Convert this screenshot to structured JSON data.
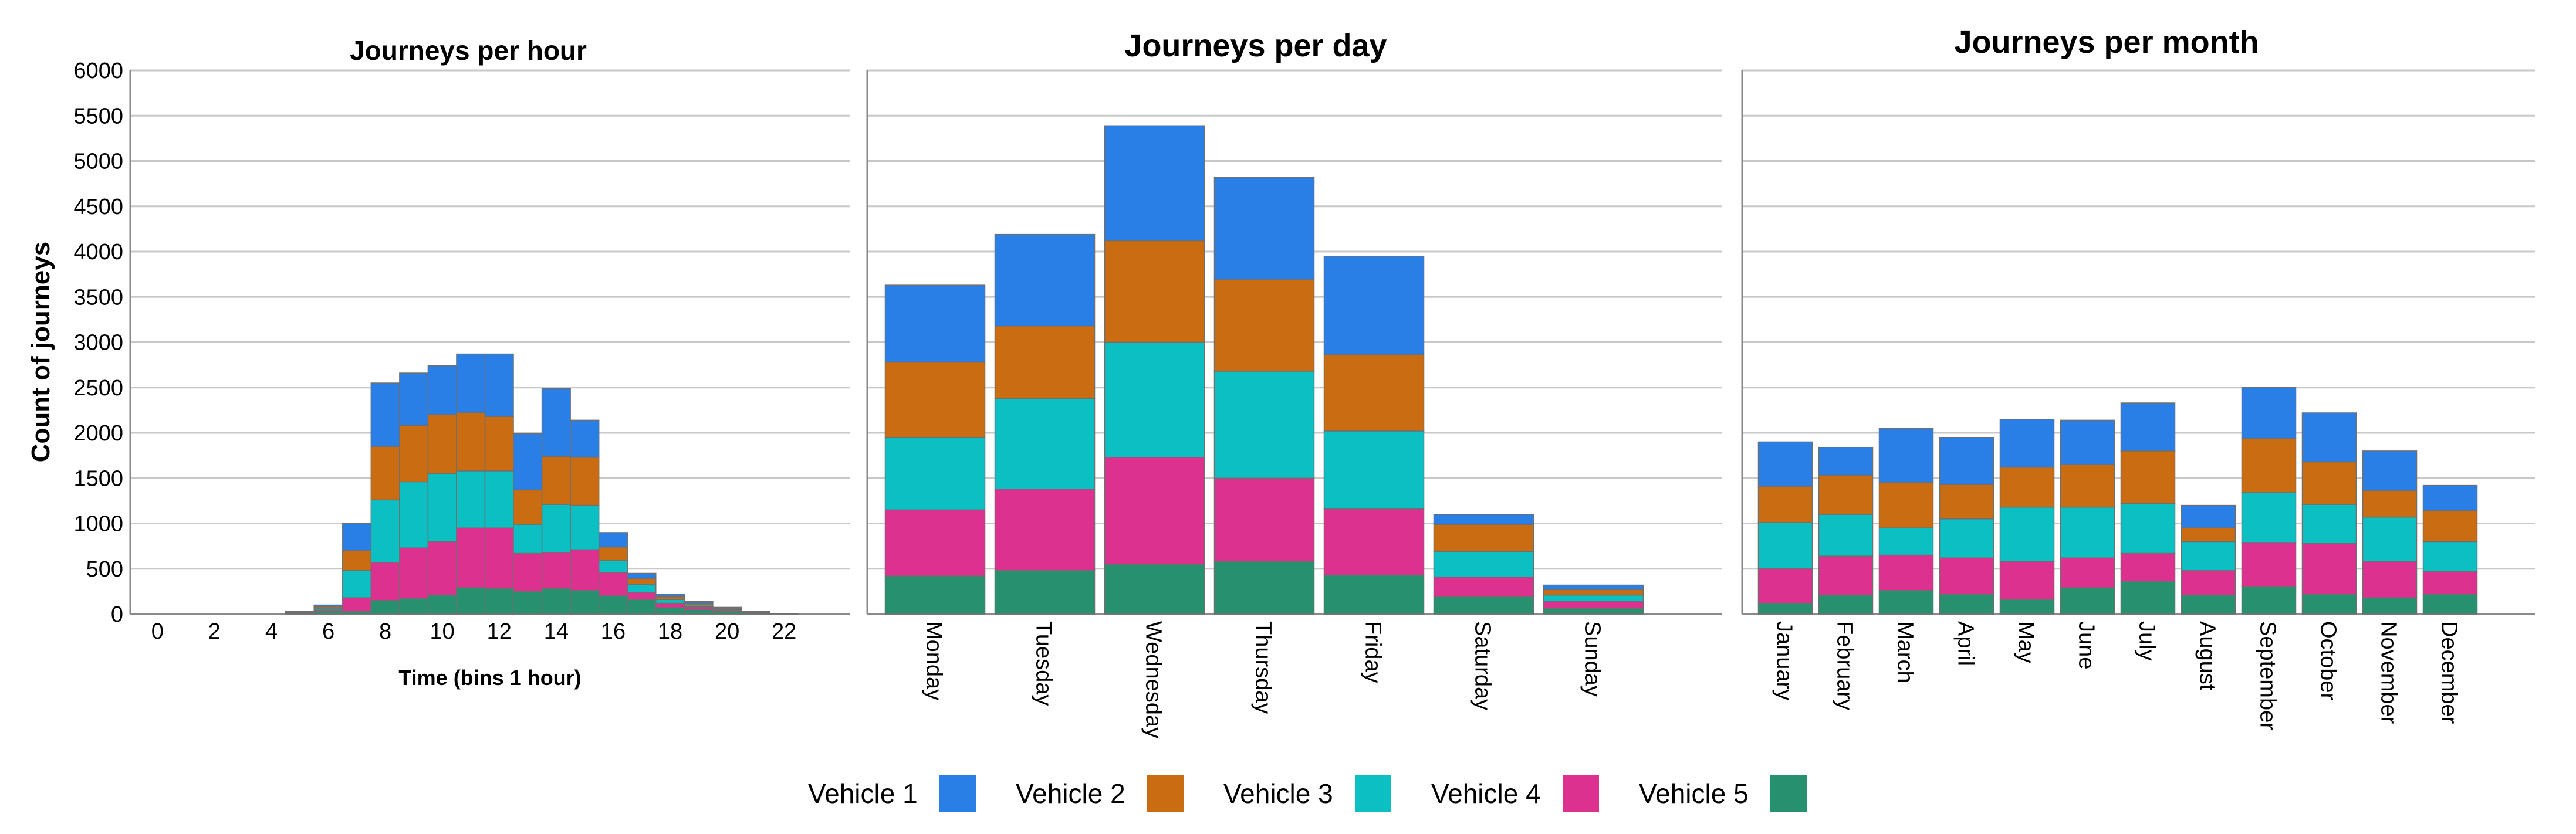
{
  "colors": {
    "Vehicle 1": "#2a7fe6",
    "Vehicle 2": "#c96c12",
    "Vehicle 3": "#0cbfc3",
    "Vehicle 4": "#dc318f",
    "Vehicle 5": "#27916f",
    "grid": "#c8c8c8",
    "axis": "#8a8a8a"
  },
  "legend": [
    "Vehicle 1",
    "Vehicle 2",
    "Vehicle 3",
    "Vehicle 4",
    "Vehicle 5"
  ],
  "chart_data": [
    {
      "type": "bar",
      "stacked": true,
      "title": "Journeys per hour",
      "xlabel": "Time (bins 1 hour)",
      "ylabel": "Count of journeys",
      "ylim": [
        0,
        6000
      ],
      "yticks": [
        0,
        500,
        1000,
        1500,
        2000,
        2500,
        3000,
        3500,
        4000,
        4500,
        5000,
        5500,
        6000
      ],
      "xticks": [
        0,
        2,
        4,
        6,
        8,
        10,
        12,
        14,
        16,
        18,
        20,
        22
      ],
      "xlim": [
        -0.5,
        23.5
      ],
      "grid": true,
      "categories": [
        0,
        1,
        2,
        3,
        4,
        5,
        6,
        7,
        8,
        9,
        10,
        11,
        12,
        13,
        14,
        15,
        16,
        17,
        18,
        19,
        20,
        21,
        22,
        23
      ],
      "series": [
        {
          "name": "Vehicle 5",
          "values": [
            0,
            0,
            0,
            0,
            0,
            10,
            30,
            30,
            150,
            170,
            210,
            290,
            280,
            250,
            280,
            260,
            200,
            160,
            70,
            50,
            30,
            10,
            5,
            0
          ]
        },
        {
          "name": "Vehicle 4",
          "values": [
            0,
            0,
            0,
            0,
            0,
            5,
            15,
            150,
            420,
            560,
            590,
            660,
            670,
            420,
            400,
            450,
            260,
            80,
            50,
            30,
            15,
            5,
            0,
            0
          ]
        },
        {
          "name": "Vehicle 3",
          "values": [
            0,
            0,
            0,
            0,
            0,
            5,
            20,
            300,
            690,
            730,
            750,
            630,
            630,
            320,
            530,
            490,
            130,
            90,
            40,
            20,
            10,
            5,
            0,
            0
          ]
        },
        {
          "name": "Vehicle 2",
          "values": [
            0,
            0,
            0,
            0,
            0,
            5,
            15,
            220,
            590,
            620,
            650,
            640,
            600,
            380,
            530,
            530,
            150,
            60,
            30,
            20,
            10,
            5,
            0,
            0
          ]
        },
        {
          "name": "Vehicle 1",
          "values": [
            0,
            0,
            0,
            0,
            0,
            5,
            20,
            300,
            700,
            580,
            540,
            650,
            690,
            620,
            750,
            410,
            160,
            60,
            30,
            20,
            10,
            5,
            0,
            0
          ]
        }
      ]
    },
    {
      "type": "bar",
      "stacked": true,
      "title": "Journeys per day",
      "ylim": [
        0,
        6000
      ],
      "grid": true,
      "categories": [
        "Monday",
        "Tuesday",
        "Wednesday",
        "Thursday",
        "Friday",
        "Saturday",
        "Sunday"
      ],
      "series": [
        {
          "name": "Vehicle 5",
          "values": [
            420,
            480,
            550,
            580,
            430,
            190,
            60
          ]
        },
        {
          "name": "Vehicle 4",
          "values": [
            730,
            900,
            1180,
            920,
            730,
            220,
            80
          ]
        },
        {
          "name": "Vehicle 3",
          "values": [
            800,
            1000,
            1270,
            1180,
            860,
            280,
            70
          ]
        },
        {
          "name": "Vehicle 2",
          "values": [
            830,
            800,
            1120,
            1010,
            840,
            300,
            60
          ]
        },
        {
          "name": "Vehicle 1",
          "values": [
            850,
            1010,
            1270,
            1130,
            1090,
            110,
            50
          ]
        }
      ]
    },
    {
      "type": "bar",
      "stacked": true,
      "title": "Journeys per month",
      "ylim": [
        0,
        6000
      ],
      "grid": true,
      "categories": [
        "January",
        "February",
        "March",
        "April",
        "May",
        "June",
        "July",
        "August",
        "September",
        "October",
        "November",
        "December"
      ],
      "series": [
        {
          "name": "Vehicle 5",
          "values": [
            120,
            210,
            260,
            220,
            160,
            290,
            360,
            210,
            300,
            220,
            180,
            220
          ]
        },
        {
          "name": "Vehicle 4",
          "values": [
            380,
            430,
            390,
            400,
            420,
            330,
            310,
            270,
            490,
            560,
            400,
            250
          ]
        },
        {
          "name": "Vehicle 3",
          "values": [
            510,
            460,
            300,
            430,
            600,
            560,
            550,
            320,
            550,
            430,
            490,
            330
          ]
        },
        {
          "name": "Vehicle 2",
          "values": [
            400,
            430,
            500,
            380,
            440,
            470,
            580,
            150,
            600,
            470,
            290,
            340
          ]
        },
        {
          "name": "Vehicle 1",
          "values": [
            490,
            310,
            600,
            520,
            530,
            490,
            530,
            250,
            560,
            540,
            440,
            280
          ]
        }
      ]
    }
  ]
}
